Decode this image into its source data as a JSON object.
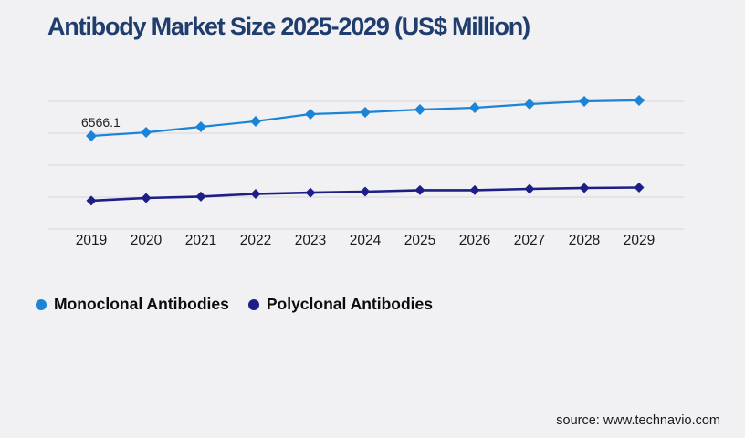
{
  "title": "Antibody Market Size 2025-2029 (US$ Million)",
  "source": "source: www.technavio.com",
  "colors": {
    "background": "#f1f1f4",
    "title": "#1f3d6d",
    "gridline": "#d8d8db",
    "monoclonal": "#1b84d6",
    "polyclonal": "#1e1e87",
    "axis_text": "#1a1a1a"
  },
  "legend": {
    "items": [
      {
        "label": "Monoclonal Antibodies",
        "color_key": "monoclonal"
      },
      {
        "label": "Polyclonal Antibodies",
        "color_key": "polyclonal"
      }
    ]
  },
  "chart_data": {
    "type": "line",
    "title": "Antibody Market Size 2025-2029 (US$ Million)",
    "x": [
      2019,
      2020,
      2021,
      2022,
      2023,
      2024,
      2025,
      2026,
      2027,
      2028,
      2029
    ],
    "series": [
      {
        "name": "Monoclonal Antibodies",
        "color": "#1b84d6",
        "marker": "diamond",
        "values": [
          6566.1,
          6820,
          7210,
          7600,
          8110,
          8240,
          8430,
          8560,
          8820,
          9010,
          9080
        ]
      },
      {
        "name": "Polyclonal Antibodies",
        "color": "#1e1e87",
        "marker": "diamond",
        "values": [
          2000,
          2190,
          2290,
          2480,
          2570,
          2640,
          2740,
          2740,
          2830,
          2900,
          2930
        ]
      }
    ],
    "data_labels": [
      {
        "series": "Monoclonal Antibodies",
        "x": 2019,
        "text": "6566.1"
      }
    ],
    "xlabel": "",
    "ylabel": "",
    "ylim": [
      0,
      10000
    ],
    "y_axis_tick_labels_visible": false,
    "grid": "horizontal",
    "gridline_count": 5,
    "legend_position": "bottom-left"
  }
}
